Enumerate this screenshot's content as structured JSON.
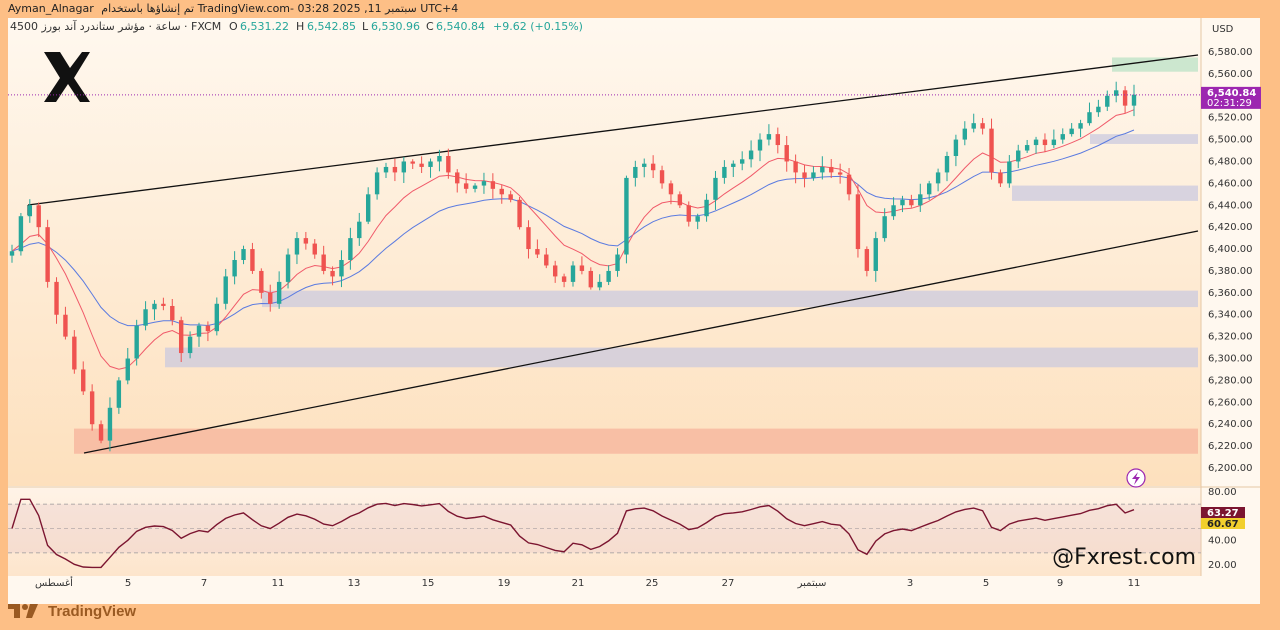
{
  "header": {
    "author": "Ayman_Alnagar",
    "published_line": "تم إنشاؤها باستخدام TradingView.com- 03:28 2025 ,11 سبتمبر UTC+4",
    "symbol_line": "4ساعة · مؤشر ستاندرد آند بورز 500 · FXCM",
    "ohlc": {
      "o_label": "O",
      "o": "6,531.22",
      "h_label": "H",
      "h": "6,542.85",
      "l_label": "L",
      "l": "6,530.96",
      "c_label": "C",
      "c": "6,540.84",
      "change": "+9.62 (+0.15%)"
    }
  },
  "currency": "USD",
  "price_axis": {
    "ticks": [
      "6,580.00",
      "6,560.00",
      "6,540.00",
      "6,520.00",
      "6,500.00",
      "6,480.00",
      "6,460.00",
      "6,440.00",
      "6,420.00",
      "6,400.00",
      "6,380.00",
      "6,360.00",
      "6,340.00",
      "6,320.00",
      "6,300.00",
      "6,280.00",
      "6,260.00",
      "6,240.00",
      "6,220.00",
      "6,200.00"
    ],
    "last_price": "6,540.84",
    "countdown": "02:31:29"
  },
  "rsi_axis": {
    "ticks": [
      "80.00",
      "60.00",
      "40.00",
      "20.00"
    ],
    "rsi_value": "63.27",
    "ma_value": "60.67"
  },
  "time_axis": {
    "labels": [
      "أغسطس",
      "5",
      "7",
      "11",
      "13",
      "15",
      "19",
      "21",
      "25",
      "27",
      "سبتمبر",
      "3",
      "5",
      "9",
      "11"
    ]
  },
  "watermark_handle": "@Fxrest.com",
  "tradingview_brand": "TradingView",
  "colors": {
    "up": "#26a69a",
    "down": "#ef5350",
    "ema_fast": "#f05a6a",
    "ema_slow": "#5b7be0",
    "channel": "#111111",
    "last_price_badge": "#9c27b0",
    "rsi_line": "#7b1530"
  },
  "chart_data": {
    "type": "candlestick",
    "title": "",
    "xlabel": "",
    "ylabel": "USD",
    "ylim": [
      6200,
      6590
    ],
    "last_close": 6540.84,
    "ohlc_x_labels": [
      "أغسطس",
      "5",
      "7",
      "11",
      "13",
      "15",
      "19",
      "21",
      "25",
      "27",
      "سبتمبر",
      "3",
      "5",
      "9",
      "11"
    ],
    "closes": [
      6398,
      6430,
      6440,
      6420,
      6370,
      6340,
      6320,
      6290,
      6270,
      6240,
      6225,
      6255,
      6280,
      6300,
      6330,
      6345,
      6350,
      6348,
      6335,
      6305,
      6320,
      6330,
      6325,
      6350,
      6375,
      6390,
      6400,
      6380,
      6360,
      6350,
      6370,
      6395,
      6410,
      6405,
      6395,
      6380,
      6375,
      6390,
      6410,
      6425,
      6450,
      6470,
      6475,
      6470,
      6480,
      6478,
      6475,
      6480,
      6485,
      6470,
      6460,
      6455,
      6458,
      6462,
      6455,
      6450,
      6445,
      6420,
      6400,
      6395,
      6385,
      6375,
      6370,
      6385,
      6380,
      6365,
      6370,
      6380,
      6395,
      6465,
      6475,
      6478,
      6472,
      6460,
      6450,
      6440,
      6425,
      6430,
      6445,
      6465,
      6475,
      6478,
      6482,
      6490,
      6500,
      6505,
      6495,
      6480,
      6470,
      6465,
      6470,
      6475,
      6470,
      6468,
      6450,
      6400,
      6380,
      6410,
      6430,
      6440,
      6445,
      6440,
      6450,
      6460,
      6470,
      6485,
      6500,
      6510,
      6515,
      6510,
      6470,
      6460,
      6480,
      6490,
      6495,
      6500,
      6495,
      6500,
      6505,
      6510,
      6515,
      6525,
      6530,
      6540,
      6545,
      6531,
      6541
    ],
    "support_zones": [
      {
        "from": 6505,
        "to": 6496
      },
      {
        "from": 6458,
        "to": 6444
      },
      {
        "from": 6362,
        "to": 6347
      },
      {
        "from": 6310,
        "to": 6292
      },
      {
        "from": 6236,
        "to": 6213
      }
    ],
    "target_zone": {
      "from": 6575,
      "to": 6562
    },
    "series": [
      {
        "name": "",
        "type": "ema_fast"
      },
      {
        "name": "",
        "type": "ema_slow"
      }
    ],
    "rsi": {
      "ylim": [
        10,
        90
      ],
      "levels": [
        70,
        50,
        30
      ],
      "value": 63.27,
      "ma": 60.67
    }
  }
}
